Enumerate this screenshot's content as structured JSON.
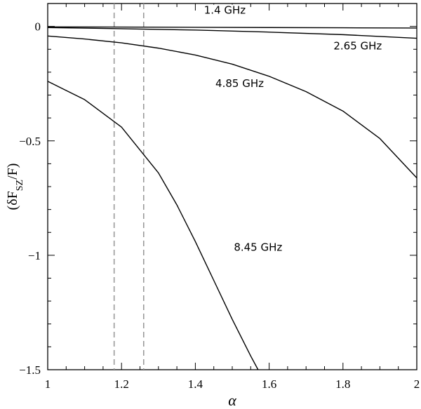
{
  "chart_data": {
    "type": "line",
    "xlabel": "α",
    "ylabel": {
      "open": "(δF",
      "subscript": "SZ",
      "close": "/F)"
    },
    "xlim": [
      1,
      2
    ],
    "ylim": [
      -1.5,
      0.1
    ],
    "x_ticks": [
      1,
      1.2,
      1.4,
      1.6,
      1.8,
      2
    ],
    "x_tick_labels": [
      "1",
      "1.2",
      "1.4",
      "1.6",
      "1.8",
      "2"
    ],
    "y_ticks": [
      0,
      -0.5,
      -1,
      -1.5
    ],
    "y_tick_labels": [
      "0",
      "−0.5",
      "−1",
      "−1.5"
    ],
    "reference_lines": [
      {
        "x": 1.18,
        "style": "dashed",
        "color": "#999999"
      },
      {
        "x": 1.26,
        "style": "dashed",
        "color": "#999999"
      }
    ],
    "series": [
      {
        "name": "1.4 GHz",
        "x": [
          1.0,
          1.2,
          1.4,
          1.6,
          1.8,
          2.0
        ],
        "y": [
          -0.002,
          -0.003,
          -0.004,
          -0.005,
          -0.006,
          -0.007
        ]
      },
      {
        "name": "2.65 GHz",
        "x": [
          1.0,
          1.2,
          1.4,
          1.6,
          1.8,
          2.0
        ],
        "y": [
          -0.005,
          -0.01,
          -0.016,
          -0.025,
          -0.036,
          -0.052
        ]
      },
      {
        "name": "4.85 GHz",
        "x": [
          1.0,
          1.1,
          1.2,
          1.3,
          1.4,
          1.5,
          1.6,
          1.7,
          1.8,
          1.9,
          2.0
        ],
        "y": [
          -0.042,
          -0.055,
          -0.072,
          -0.095,
          -0.125,
          -0.165,
          -0.218,
          -0.285,
          -0.37,
          -0.49,
          -0.662
        ]
      },
      {
        "name": "8.45 GHz",
        "x": [
          1.0,
          1.1,
          1.2,
          1.3,
          1.35,
          1.4,
          1.45,
          1.5,
          1.55,
          1.57
        ],
        "y": [
          -0.24,
          -0.32,
          -0.44,
          -0.64,
          -0.78,
          -0.94,
          -1.11,
          -1.28,
          -1.44,
          -1.5
        ]
      }
    ],
    "annotations": [
      {
        "text": "1.4 GHz",
        "x": 1.48,
        "y": 0.055,
        "series": 0
      },
      {
        "text": "2.65 GHz",
        "x": 1.84,
        "y": -0.1,
        "series": 1
      },
      {
        "text": "4.85 GHz",
        "x": 1.52,
        "y": -0.265,
        "series": 2
      },
      {
        "text": "8.45 GHz",
        "x": 1.57,
        "y": -0.98,
        "series": 3
      }
    ],
    "line_color": "#000000"
  }
}
